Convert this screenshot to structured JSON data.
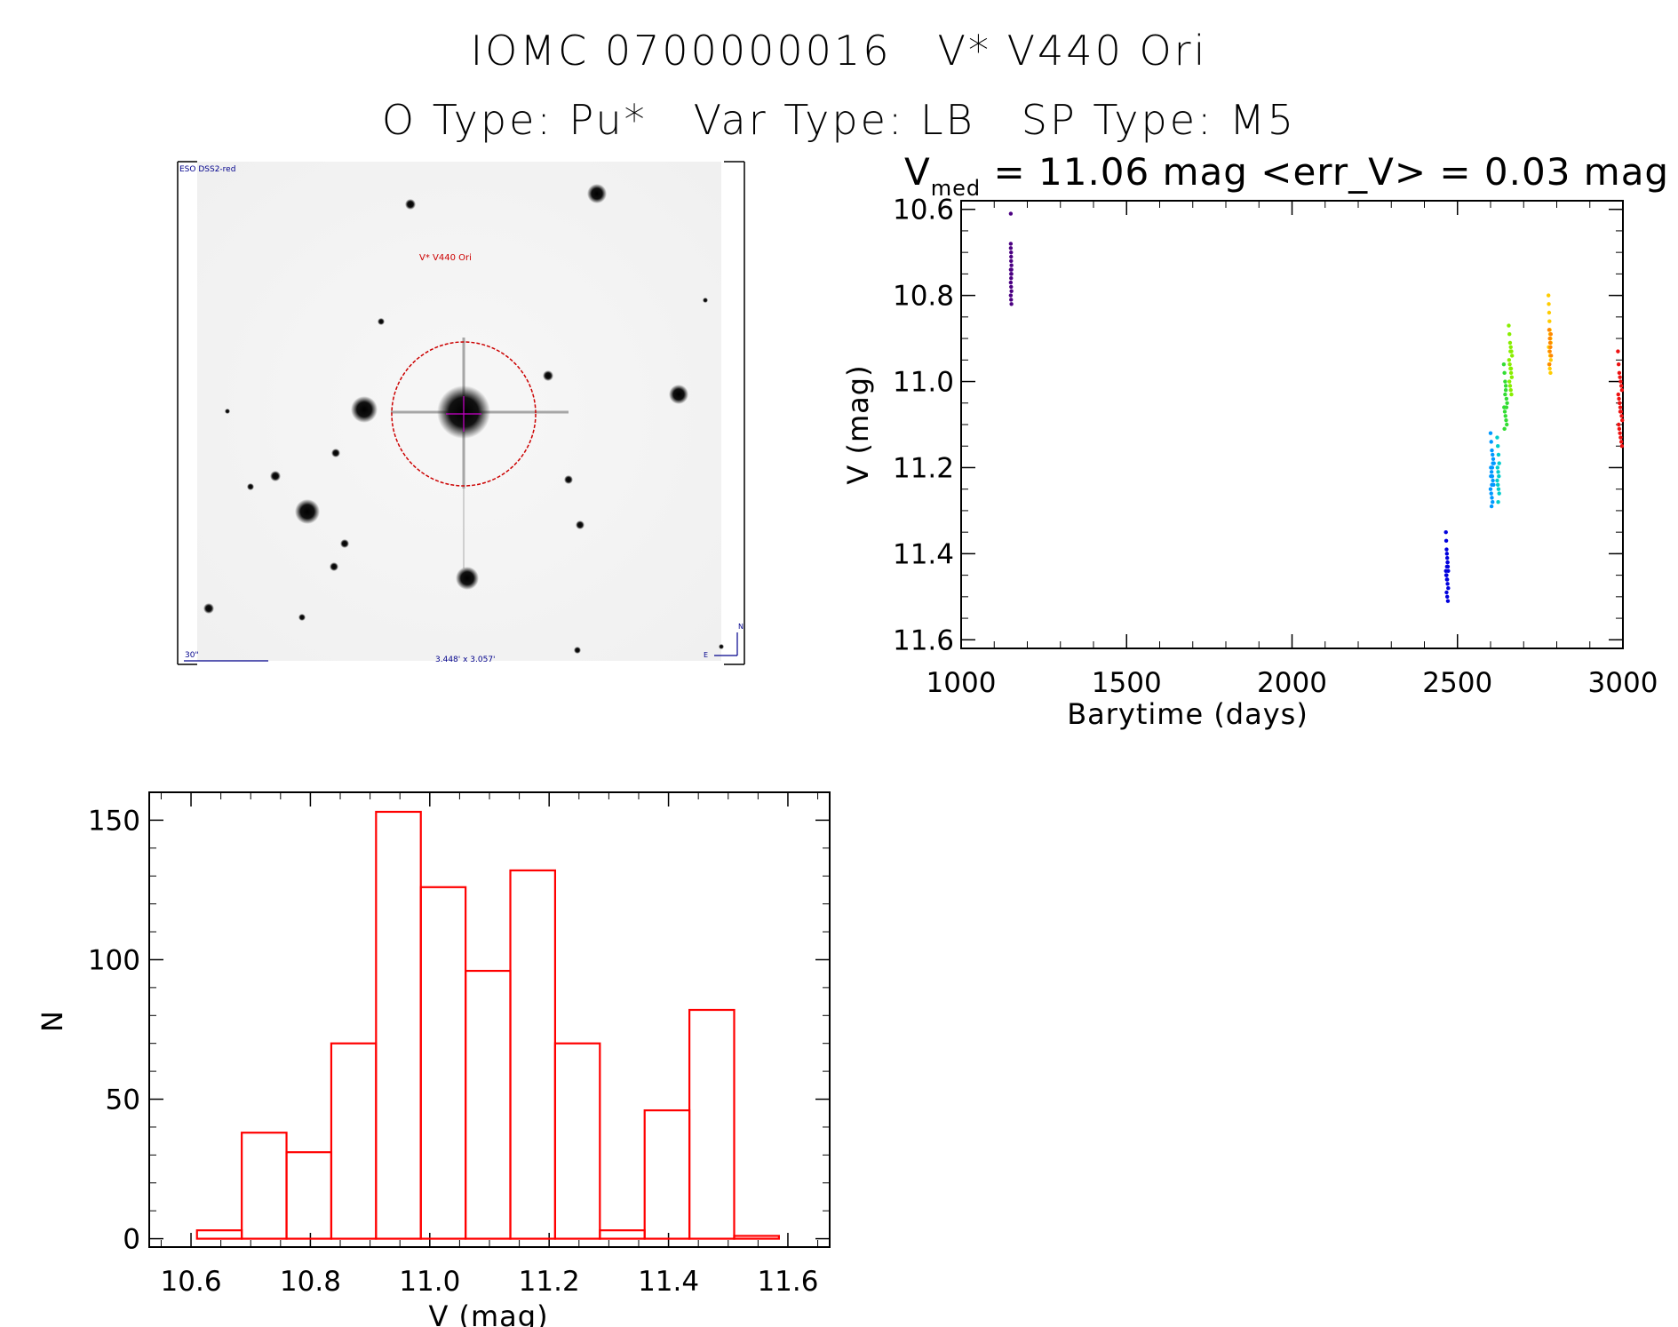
{
  "header": {
    "object_id": "IOMC 0700000016",
    "star_name": "V* V440 Ori",
    "o_type": "O Type: Pu*",
    "var_type": "Var Type: LB",
    "sp_type": "SP Type: M5"
  },
  "finder_image": {
    "survey_label": "ESO DSS2-red",
    "target_label": "V* V440 Ori",
    "scale_label": "30\"",
    "size_label": "3.448' x 3.057'",
    "north_label": "N",
    "east_label": "E"
  },
  "colors": {
    "hist": "#ff0000",
    "target_circle": "#cc0000",
    "crosshair": "#cc00cc",
    "image_labels": "#00008b"
  },
  "chart_data": [
    {
      "type": "scatter",
      "title_main": "V",
      "title_sub": "med",
      "title_rest": " = 11.06 mag <err_V> = 0.03 mag",
      "xlabel": "Barytime (days)",
      "ylabel": "V (mag)",
      "xlim": [
        1000,
        3000
      ],
      "ylim": [
        11.62,
        10.58
      ],
      "y_inverted": true,
      "xticks": [
        1000,
        1500,
        2000,
        2500,
        3000
      ],
      "xtick_labels": [
        "1000",
        "1500",
        "2000",
        "2500",
        "3000"
      ],
      "yticks": [
        10.6,
        10.8,
        11.0,
        11.2,
        11.4,
        11.6
      ],
      "ytick_labels": [
        "10.6",
        "10.8",
        "11.0",
        "11.2",
        "11.4",
        "11.6"
      ],
      "series": [
        {
          "color": "#4b0082",
          "x": [
            1150,
            1150,
            1150,
            1151,
            1151,
            1151,
            1152,
            1152,
            1152,
            1151,
            1150,
            1151,
            1152,
            1150,
            1151,
            1152,
            1151,
            1150
          ],
          "y": [
            10.61,
            10.68,
            10.69,
            10.7,
            10.71,
            10.72,
            10.73,
            10.74,
            10.75,
            10.76,
            10.77,
            10.78,
            10.79,
            10.8,
            10.81,
            10.82,
            10.75,
            10.74
          ]
        },
        {
          "color": "#0000dd",
          "x": [
            2465,
            2466,
            2467,
            2468,
            2469,
            2470,
            2471,
            2472,
            2466,
            2468,
            2470,
            2472,
            2467,
            2469,
            2471,
            2465,
            2468,
            2470,
            2469,
            2467
          ],
          "y": [
            11.35,
            11.37,
            11.39,
            11.4,
            11.41,
            11.42,
            11.43,
            11.44,
            11.45,
            11.46,
            11.47,
            11.48,
            11.49,
            11.5,
            11.51,
            11.44,
            11.43,
            11.42,
            11.46,
            11.45
          ]
        },
        {
          "color": "#0099ff",
          "x": [
            2600,
            2602,
            2604,
            2606,
            2608,
            2610,
            2601,
            2603,
            2605,
            2607,
            2609,
            2600,
            2602,
            2604,
            2606,
            2603,
            2605,
            2601,
            2607,
            2604
          ],
          "y": [
            11.12,
            11.14,
            11.16,
            11.17,
            11.18,
            11.19,
            11.2,
            11.21,
            11.22,
            11.23,
            11.24,
            11.25,
            11.26,
            11.27,
            11.28,
            11.29,
            11.2,
            11.22,
            11.19,
            11.24
          ]
        },
        {
          "color": "#00cccc",
          "x": [
            2620,
            2622,
            2624,
            2626,
            2621,
            2623,
            2625,
            2620,
            2622,
            2624,
            2626,
            2623
          ],
          "y": [
            11.13,
            11.15,
            11.17,
            11.19,
            11.2,
            11.21,
            11.22,
            11.23,
            11.24,
            11.25,
            11.26,
            11.28
          ]
        },
        {
          "color": "#33dd33",
          "x": [
            2640,
            2642,
            2644,
            2646,
            2648,
            2650,
            2641,
            2643,
            2645,
            2647,
            2649,
            2642,
            2644,
            2646,
            2648
          ],
          "y": [
            10.96,
            10.98,
            11.0,
            11.02,
            11.04,
            11.05,
            11.06,
            11.07,
            11.08,
            11.09,
            11.1,
            11.11,
            11.03,
            11.01,
            11.06
          ]
        },
        {
          "color": "#88ee00",
          "x": [
            2655,
            2657,
            2659,
            2661,
            2663,
            2665,
            2656,
            2658,
            2660,
            2662,
            2664,
            2657,
            2659,
            2661,
            2663,
            2660,
            2662
          ],
          "y": [
            10.87,
            10.89,
            10.91,
            10.92,
            10.93,
            10.94,
            10.95,
            10.96,
            10.97,
            10.98,
            10.99,
            11.0,
            11.01,
            11.02,
            11.03,
            10.93,
            10.97
          ]
        },
        {
          "color": "#ffcc00",
          "x": [
            2775,
            2776,
            2777,
            2778,
            2779,
            2780,
            2781,
            2782,
            2776,
            2778,
            2780,
            2782,
            2777,
            2779,
            2781
          ],
          "y": [
            10.8,
            10.82,
            10.84,
            10.86,
            10.88,
            10.89,
            10.9,
            10.91,
            10.92,
            10.93,
            10.94,
            10.95,
            10.96,
            10.97,
            10.98
          ]
        },
        {
          "color": "#ff8800",
          "x": [
            2777,
            2779,
            2781,
            2783,
            2778,
            2780,
            2782,
            2779
          ],
          "y": [
            10.88,
            10.9,
            10.92,
            10.94,
            10.96,
            10.91,
            10.89,
            10.93
          ]
        },
        {
          "color": "#ee1111",
          "x": [
            2985,
            2987,
            2989,
            2991,
            2993,
            2995,
            2997,
            2986,
            2988,
            2990,
            2992,
            2994,
            2996,
            2998,
            2987,
            2989,
            2991,
            2993,
            2995,
            2997,
            2990,
            2992
          ],
          "y": [
            10.93,
            10.96,
            10.98,
            10.99,
            11.0,
            11.01,
            11.02,
            11.03,
            11.04,
            11.05,
            11.06,
            11.07,
            11.08,
            11.09,
            11.1,
            11.11,
            11.12,
            11.13,
            11.14,
            11.15,
            11.05,
            11.07
          ]
        }
      ]
    },
    {
      "type": "bar",
      "subtype": "histogram",
      "xlabel": "V (mag)",
      "ylabel": "N",
      "xlim": [
        10.53,
        11.67
      ],
      "ylim": [
        -3,
        160
      ],
      "xticks": [
        10.6,
        10.8,
        11.0,
        11.2,
        11.4,
        11.6
      ],
      "xtick_labels": [
        "10.6",
        "10.8",
        "11.0",
        "11.2",
        "11.4",
        "11.6"
      ],
      "yticks": [
        0,
        50,
        100,
        150
      ],
      "ytick_labels": [
        "0",
        "50",
        "100",
        "150"
      ],
      "bin_edges": [
        10.61,
        10.685,
        10.76,
        10.835,
        10.91,
        10.985,
        11.06,
        11.135,
        11.21,
        11.285,
        11.36,
        11.435,
        11.51,
        11.585
      ],
      "values": [
        3,
        38,
        31,
        70,
        153,
        126,
        96,
        132,
        70,
        3,
        46,
        82,
        1
      ]
    }
  ]
}
